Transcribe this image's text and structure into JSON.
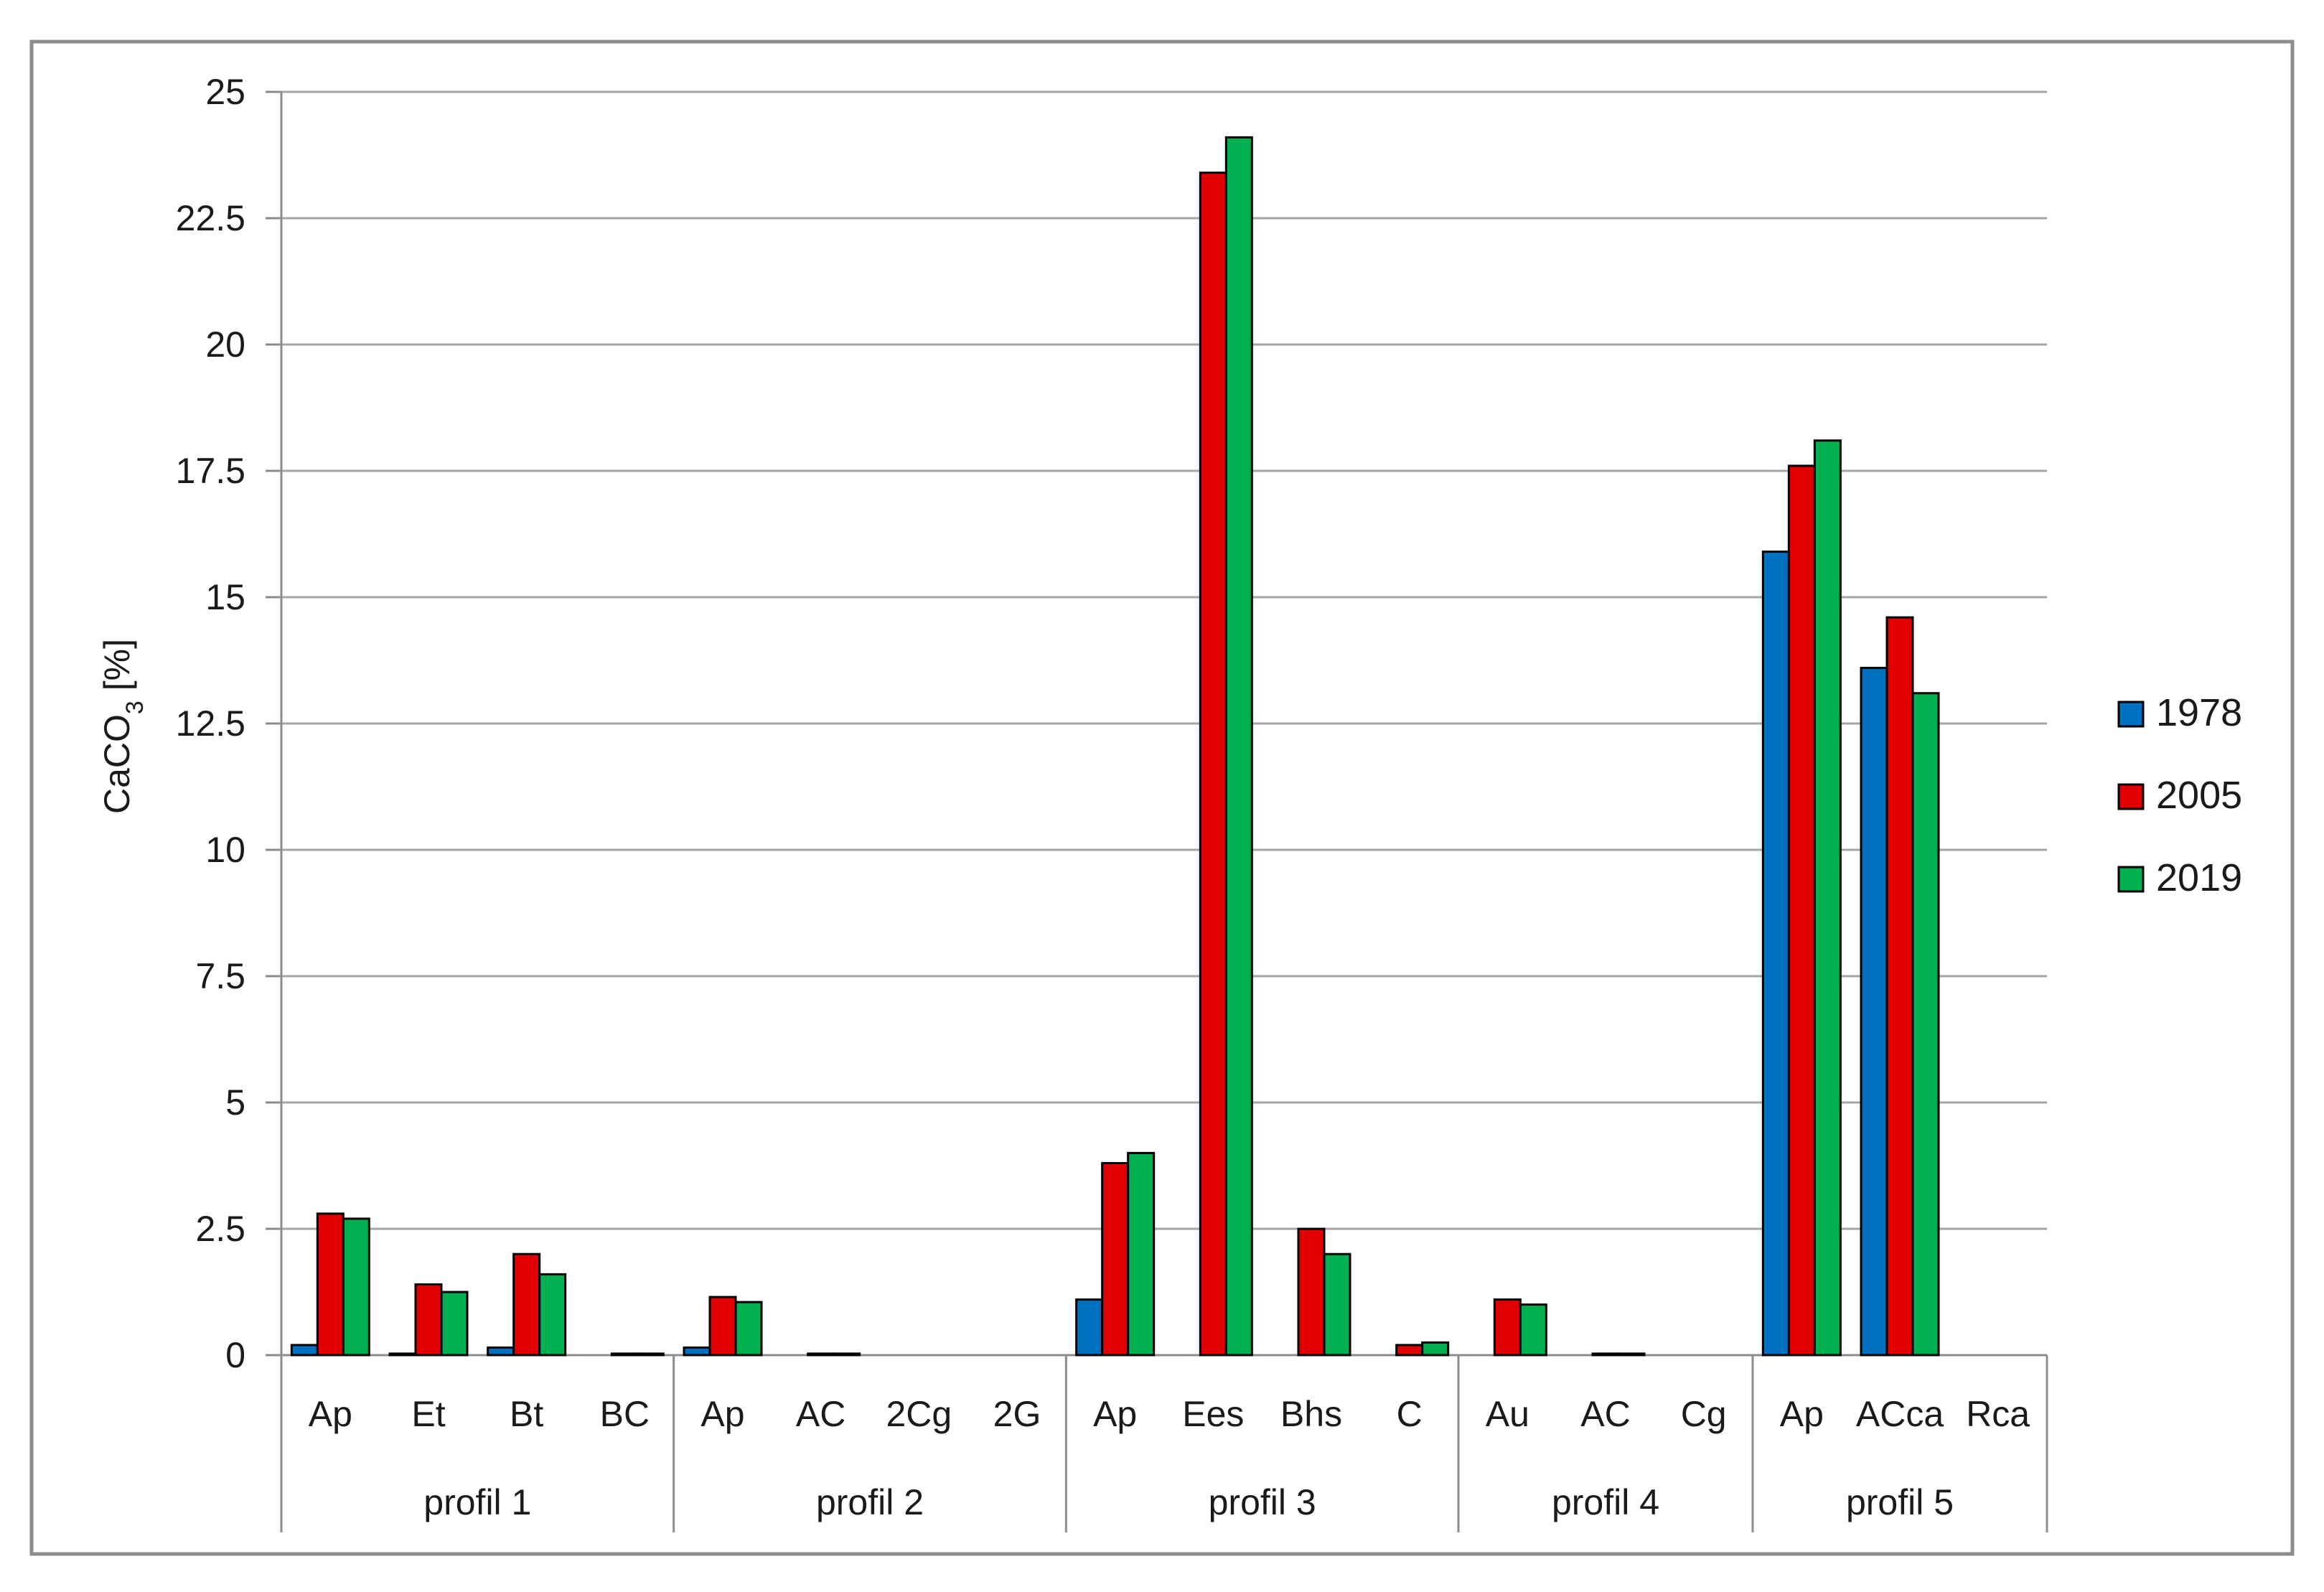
{
  "chart_data": {
    "type": "bar",
    "ylabel": "CaCO",
    "ylabel_sub": "3",
    "ylabel_unit": " [%]",
    "ylim": [
      0,
      25
    ],
    "yticks": [
      0,
      2.5,
      5,
      7.5,
      10,
      12.5,
      15,
      17.5,
      20,
      22.5,
      25
    ],
    "ytick_labels": [
      "0",
      "2.5",
      "5",
      "7.5",
      "10",
      "12.5",
      "15",
      "17.5",
      "20",
      "22.5",
      "25"
    ],
    "grid": true,
    "legend_position": "right",
    "colors": {
      "1978": "#0070c0",
      "2005": "#e00000",
      "2019": "#00b050"
    },
    "groups": [
      {
        "label": "profil 1",
        "categories": [
          "Ap",
          "Et",
          "Bt",
          "BC"
        ]
      },
      {
        "label": "profil 2",
        "categories": [
          "Ap",
          "AC",
          "2Cg",
          "2G"
        ]
      },
      {
        "label": "profil 3",
        "categories": [
          "Ap",
          "Ees",
          "Bhs",
          "C"
        ]
      },
      {
        "label": "profil 4",
        "categories": [
          "Au",
          "AC",
          "Cg"
        ]
      },
      {
        "label": "profil 5",
        "categories": [
          "Ap",
          "ACca",
          "Rca"
        ]
      }
    ],
    "categories": [
      "Ap",
      "Et",
      "Bt",
      "BC",
      "Ap",
      "AC",
      "2Cg",
      "2G",
      "Ap",
      "Ees",
      "Bhs",
      "C",
      "Au",
      "AC",
      "Cg",
      "Ap",
      "ACca",
      "Rca"
    ],
    "series": [
      {
        "name": "1978",
        "values": [
          0.2,
          0.03,
          0.15,
          0.0,
          0.15,
          0.0,
          0.0,
          0.0,
          1.1,
          0.0,
          0.0,
          0.0,
          0.0,
          0.0,
          0.0,
          15.9,
          13.6,
          0.0
        ]
      },
      {
        "name": "2005",
        "values": [
          2.8,
          1.4,
          2.0,
          0.03,
          1.15,
          0.03,
          0.0,
          0.0,
          3.8,
          23.4,
          2.5,
          0.2,
          1.1,
          0.03,
          0.0,
          17.6,
          14.6,
          0.0
        ]
      },
      {
        "name": "2019",
        "values": [
          2.7,
          1.25,
          1.6,
          0.03,
          1.05,
          0.03,
          0.0,
          0.0,
          4.0,
          24.1,
          2.0,
          0.25,
          1.0,
          0.03,
          0.0,
          18.1,
          13.1,
          0.0
        ]
      }
    ]
  }
}
